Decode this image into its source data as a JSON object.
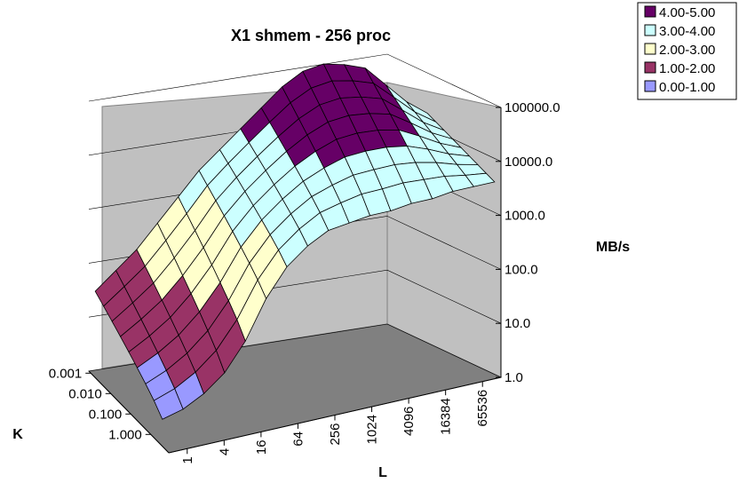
{
  "chart_data": {
    "type": "surface",
    "title": "X1 shmem - 256 proc",
    "x_label": "L",
    "y_label": "K",
    "z_label": "MB/s",
    "z_scale": "log",
    "z_ticks": [
      "1.0",
      "10.0",
      "100.0",
      "1000.0",
      "10000.0",
      "100000.0"
    ],
    "x_ticks": [
      "1",
      "4",
      "16",
      "64",
      "256",
      "1024",
      "4096",
      "16384",
      "65536"
    ],
    "y_ticks": [
      "0.001",
      "0.010",
      "0.100",
      "1.000"
    ],
    "legend_position": "top-right",
    "legend": [
      {
        "label": "4.00-5.00",
        "color": "#660066"
      },
      {
        "label": "3.00-4.00",
        "color": "#ccffff"
      },
      {
        "label": "2.00-3.00",
        "color": "#ffffcc"
      },
      {
        "label": "1.00-2.00",
        "color": "#993366"
      },
      {
        "label": "0.00-1.00",
        "color": "#9999ff"
      }
    ],
    "front_row_log10": [
      0.5,
      0.6,
      0.8,
      1.1,
      1.6,
      2.3,
      2.8,
      3.1,
      3.3,
      3.35,
      3.4,
      3.4,
      3.45,
      3.45,
      3.5,
      3.5,
      3.5
    ],
    "back_row_log10": [
      1.6,
      1.9,
      2.2,
      2.6,
      3.0,
      3.4,
      3.7,
      4.0,
      4.3,
      4.6,
      4.8,
      4.85,
      4.75,
      4.6,
      4.2,
      3.8,
      3.5
    ]
  }
}
